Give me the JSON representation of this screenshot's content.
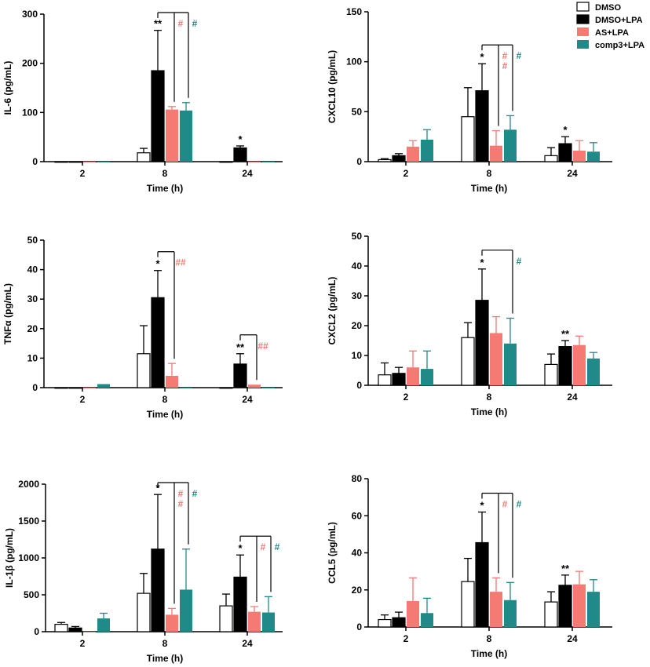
{
  "colors": {
    "dmso": "#ffffff",
    "dmso_lpa": "#000000",
    "as_lpa": "#f47a73",
    "comp3_lpa": "#1f8a87"
  },
  "legend": [
    "DMSO",
    "DMSO+LPA",
    "AS+LPA",
    "comp3+LPA"
  ],
  "chart_data": [
    {
      "type": "bar",
      "id": "il6",
      "ylabel": "IL-6 (pg/mL)",
      "xlabel": "Time (h)",
      "categories": [
        "2",
        "8",
        "24"
      ],
      "ylim": [
        0,
        300
      ],
      "yticks": [
        0,
        100,
        200,
        300
      ],
      "series": [
        {
          "name": "DMSO",
          "values": [
            0,
            18,
            0
          ],
          "errors": [
            0,
            9,
            0
          ]
        },
        {
          "name": "DMSO+LPA",
          "values": [
            0,
            185,
            28
          ],
          "errors": [
            0,
            82,
            4
          ]
        },
        {
          "name": "AS+LPA",
          "values": [
            0,
            106,
            0
          ],
          "errors": [
            0,
            6,
            0
          ]
        },
        {
          "name": "comp3+LPA",
          "values": [
            0,
            104,
            0
          ],
          "errors": [
            0,
            16,
            0
          ]
        }
      ],
      "annotations": [
        {
          "text": "**",
          "group": 1,
          "series": 1
        },
        {
          "text": "*",
          "group": 2,
          "series": 1
        },
        {
          "text": "#",
          "group": 1,
          "series": 2,
          "color": "as_lpa"
        },
        {
          "text": "#",
          "group": 1,
          "series": 3,
          "color": "comp3_lpa"
        }
      ],
      "brackets": [
        {
          "group": 1,
          "from": 1,
          "to": [
            2,
            3
          ]
        }
      ]
    },
    {
      "type": "bar",
      "id": "cxcl10",
      "ylabel": "CXCL10 (pg/mL)",
      "xlabel": "Time (h)",
      "categories": [
        "2",
        "8",
        "24"
      ],
      "ylim": [
        0,
        150
      ],
      "yticks": [
        0,
        50,
        100,
        150
      ],
      "series": [
        {
          "name": "DMSO",
          "values": [
            2,
            45,
            6
          ],
          "errors": [
            1,
            29,
            8
          ]
        },
        {
          "name": "DMSO+LPA",
          "values": [
            6,
            71,
            18
          ],
          "errors": [
            2,
            27,
            7
          ]
        },
        {
          "name": "AS+LPA",
          "values": [
            15,
            16,
            11
          ],
          "errors": [
            6,
            15,
            10
          ]
        },
        {
          "name": "comp3+LPA",
          "values": [
            22,
            32,
            10
          ],
          "errors": [
            10,
            14,
            9
          ]
        }
      ],
      "annotations": [
        {
          "text": "*",
          "group": 1,
          "series": 1
        },
        {
          "text": "*",
          "group": 2,
          "series": 1
        },
        {
          "text": "##",
          "group": 1,
          "series": 2,
          "color": "as_lpa",
          "stack": true
        },
        {
          "text": "#",
          "group": 1,
          "series": 3,
          "color": "comp3_lpa"
        }
      ],
      "brackets": [
        {
          "group": 1,
          "from": 1,
          "to": [
            2,
            3
          ]
        }
      ]
    },
    {
      "type": "bar",
      "id": "tnfa",
      "ylabel": "TNFα (pg/mL)",
      "xlabel": "Time (h)",
      "categories": [
        "2",
        "8",
        "24"
      ],
      "ylim": [
        0,
        50
      ],
      "yticks": [
        0,
        10,
        20,
        30,
        40,
        50
      ],
      "series": [
        {
          "name": "DMSO",
          "values": [
            0,
            11.5,
            0
          ],
          "errors": [
            0,
            9.5,
            0
          ]
        },
        {
          "name": "DMSO+LPA",
          "values": [
            0,
            30.5,
            8
          ],
          "errors": [
            0,
            9.2,
            3.5
          ]
        },
        {
          "name": "AS+LPA",
          "values": [
            0,
            4,
            1
          ],
          "errors": [
            0,
            4.2,
            0
          ]
        },
        {
          "name": "comp3+LPA",
          "values": [
            1.2,
            0,
            0
          ],
          "errors": [
            0,
            0,
            0
          ]
        }
      ],
      "annotations": [
        {
          "text": "*",
          "group": 1,
          "series": 1
        },
        {
          "text": "**",
          "group": 2,
          "series": 1
        },
        {
          "text": "##",
          "group": 1,
          "series": 2,
          "color": "as_lpa"
        },
        {
          "text": "##",
          "group": 2,
          "series": 2,
          "color": "as_lpa"
        }
      ],
      "brackets": [
        {
          "group": 1,
          "from": 1,
          "to": [
            2
          ]
        },
        {
          "group": 2,
          "from": 1,
          "to": [
            2
          ]
        }
      ]
    },
    {
      "type": "bar",
      "id": "cxcl2",
      "ylabel": "CXCL2 (pg/mL)",
      "xlabel": "Time (h)",
      "categories": [
        "2",
        "8",
        "24"
      ],
      "ylim": [
        0,
        50
      ],
      "yticks": [
        0,
        10,
        20,
        30,
        40,
        50
      ],
      "series": [
        {
          "name": "DMSO",
          "values": [
            3.5,
            16,
            7
          ],
          "errors": [
            4,
            5,
            3.5
          ]
        },
        {
          "name": "DMSO+LPA",
          "values": [
            4,
            28.5,
            13
          ],
          "errors": [
            2,
            10.5,
            2
          ]
        },
        {
          "name": "AS+LPA",
          "values": [
            6,
            17.5,
            13.5
          ],
          "errors": [
            5.5,
            5.5,
            3
          ]
        },
        {
          "name": "comp3+LPA",
          "values": [
            5.5,
            14,
            9
          ],
          "errors": [
            6,
            8.5,
            2
          ]
        }
      ],
      "annotations": [
        {
          "text": "*",
          "group": 1,
          "series": 1
        },
        {
          "text": "**",
          "group": 2,
          "series": 1
        },
        {
          "text": "#",
          "group": 1,
          "series": 3,
          "color": "comp3_lpa"
        }
      ],
      "brackets": [
        {
          "group": 1,
          "from": 1,
          "to": [
            3
          ]
        }
      ]
    },
    {
      "type": "bar",
      "id": "il1b",
      "ylabel": "IL-1β (pg/mL)",
      "xlabel": "Time (h)",
      "categories": [
        "2",
        "8",
        "24"
      ],
      "ylim": [
        0,
        2000
      ],
      "yticks": [
        0,
        500,
        1000,
        1500,
        2000
      ],
      "series": [
        {
          "name": "DMSO",
          "values": [
            100,
            520,
            350
          ],
          "errors": [
            25,
            270,
            160
          ]
        },
        {
          "name": "DMSO+LPA",
          "values": [
            50,
            1120,
            740
          ],
          "errors": [
            20,
            740,
            300
          ]
        },
        {
          "name": "AS+LPA",
          "values": [
            0,
            230,
            270
          ],
          "errors": [
            0,
            85,
            70
          ]
        },
        {
          "name": "comp3+LPA",
          "values": [
            180,
            570,
            260
          ],
          "errors": [
            70,
            550,
            215
          ]
        }
      ],
      "annotations": [
        {
          "text": "*",
          "group": 1,
          "series": 1
        },
        {
          "text": "*",
          "group": 2,
          "series": 1
        },
        {
          "text": "##",
          "group": 1,
          "series": 2,
          "color": "as_lpa",
          "stack": true
        },
        {
          "text": "#",
          "group": 1,
          "series": 3,
          "color": "comp3_lpa"
        },
        {
          "text": "#",
          "group": 2,
          "series": 2,
          "color": "as_lpa"
        },
        {
          "text": "#",
          "group": 2,
          "series": 3,
          "color": "comp3_lpa"
        }
      ],
      "brackets": [
        {
          "group": 1,
          "from": 1,
          "to": [
            2,
            3
          ]
        },
        {
          "group": 2,
          "from": 1,
          "to": [
            2,
            3
          ]
        }
      ]
    },
    {
      "type": "bar",
      "id": "ccl5",
      "ylabel": "CCL5 (pg/mL)",
      "xlabel": "Time (h)",
      "categories": [
        "2",
        "8",
        "24"
      ],
      "ylim": [
        0,
        80
      ],
      "yticks": [
        0,
        20,
        40,
        60,
        80
      ],
      "series": [
        {
          "name": "DMSO",
          "values": [
            4,
            24.5,
            13.5
          ],
          "errors": [
            2.5,
            12.5,
            5.5
          ]
        },
        {
          "name": "DMSO+LPA",
          "values": [
            5,
            45.5,
            22.5
          ],
          "errors": [
            3,
            16.5,
            5.5
          ]
        },
        {
          "name": "AS+LPA",
          "values": [
            14,
            19,
            23
          ],
          "errors": [
            12.5,
            7.5,
            7
          ]
        },
        {
          "name": "comp3+LPA",
          "values": [
            7.5,
            14.5,
            19
          ],
          "errors": [
            8,
            9.5,
            6.5
          ]
        }
      ],
      "annotations": [
        {
          "text": "*",
          "group": 1,
          "series": 1
        },
        {
          "text": "**",
          "group": 2,
          "series": 1
        },
        {
          "text": "#",
          "group": 1,
          "series": 2,
          "color": "as_lpa"
        },
        {
          "text": "#",
          "group": 1,
          "series": 3,
          "color": "comp3_lpa"
        }
      ],
      "brackets": [
        {
          "group": 1,
          "from": 1,
          "to": [
            2,
            3
          ]
        }
      ]
    }
  ]
}
